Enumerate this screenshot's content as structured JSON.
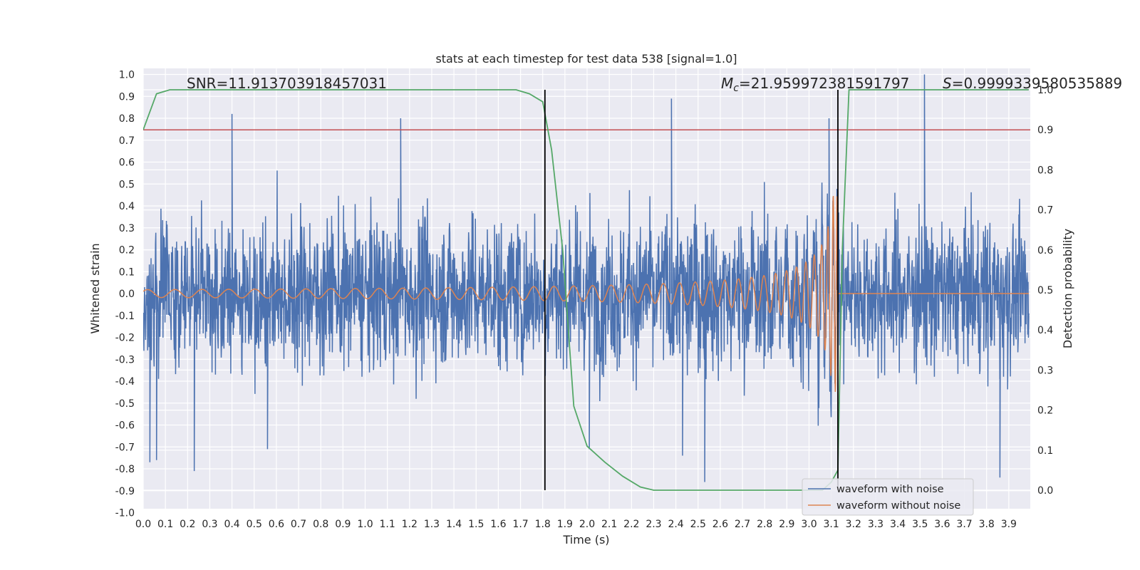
{
  "chart_data": {
    "type": "line",
    "title": "stats at each timestep for test data 538 [signal=1.0]",
    "xlabel": "Time (s)",
    "ylabel": "Whitened strain",
    "y2label": "Detection probability",
    "xlim": [
      0.0,
      3.99
    ],
    "ylim": [
      -1.05,
      1.1
    ],
    "y2lim": [
      -0.05,
      1.0
    ],
    "x_ticks": [
      "0.0",
      "0.1",
      "0.2",
      "0.3",
      "0.4",
      "0.5",
      "0.6",
      "0.7",
      "0.8",
      "0.9",
      "1.0",
      "1.1",
      "1.2",
      "1.3",
      "1.4",
      "1.5",
      "1.6",
      "1.7",
      "1.8",
      "1.9",
      "2.0",
      "2.1",
      "2.2",
      "2.3",
      "2.4",
      "2.5",
      "2.6",
      "2.7",
      "2.8",
      "2.9",
      "3.0",
      "3.1",
      "3.2",
      "3.3",
      "3.4",
      "3.5",
      "3.6",
      "3.7",
      "3.8",
      "3.9"
    ],
    "y_ticks": [
      "1.0",
      "0.9",
      "0.8",
      "0.7",
      "0.6",
      "0.5",
      "0.4",
      "0.3",
      "0.2",
      "0.1",
      "0.0",
      "-0.1",
      "-0.2",
      "-0.3",
      "-0.4",
      "-0.5",
      "-0.6",
      "-0.7",
      "-0.8",
      "-0.9",
      "-1.0"
    ],
    "y2_ticks": [
      "1.0",
      "0.9",
      "0.8",
      "0.7",
      "0.6",
      "0.5",
      "0.4",
      "0.3",
      "0.2",
      "0.1",
      "0.0"
    ],
    "grid": true,
    "legend_position": "bottom-right",
    "annotations": {
      "snr": "SNR=11.913703918457031",
      "mc_symbol": "M",
      "mc_sub": "c",
      "mc_value": "=21.959972381591797",
      "s_symbol": "S",
      "s_value": "=0.9999339580535889"
    },
    "vlines": [
      1.81,
      3.13
    ],
    "threshold": 0.9,
    "series": [
      {
        "name": "waveform with noise",
        "color": "#4c72b0",
        "axis": "left",
        "peaks": [
          [
            0.4,
            0.82
          ],
          [
            0.23,
            -0.81
          ],
          [
            0.03,
            -0.77
          ],
          [
            0.06,
            -0.76
          ],
          [
            0.56,
            -0.71
          ],
          [
            2.38,
            0.89
          ],
          [
            2.53,
            -0.86
          ],
          [
            3.09,
            0.8
          ],
          [
            3.52,
            1.0
          ],
          [
            3.86,
            -0.84
          ],
          [
            1.16,
            0.8
          ],
          [
            2.01,
            -0.71
          ],
          [
            2.43,
            -0.74
          ]
        ]
      },
      {
        "name": "waveform without noise",
        "color": "#dd8452",
        "axis": "left",
        "chirp": {
          "t_merge": 3.13,
          "amp_start": 0.018,
          "amp_peak": 0.45,
          "f_start": 8,
          "f_end": 160
        }
      },
      {
        "name": "",
        "color": "#55a868",
        "axis": "right",
        "x": [
          0.0,
          0.06,
          0.12,
          0.2,
          0.4,
          0.8,
          1.2,
          1.6,
          1.68,
          1.74,
          1.8,
          1.84,
          1.89,
          1.94,
          2.0,
          2.08,
          2.16,
          2.24,
          2.3,
          2.4,
          2.6,
          2.8,
          2.9,
          3.0,
          3.06,
          3.1,
          3.13,
          3.15,
          3.18,
          3.22,
          3.4,
          3.6,
          3.8,
          3.99
        ],
        "values": [
          0.9,
          0.99,
          1.0,
          1.0,
          1.0,
          1.0,
          1.0,
          1.0,
          1.0,
          0.99,
          0.97,
          0.85,
          0.6,
          0.21,
          0.11,
          0.07,
          0.035,
          0.008,
          0.0,
          0.0,
          0.0,
          0.0,
          0.0,
          0.0,
          0.0,
          0.02,
          0.05,
          0.6,
          1.0,
          1.0,
          1.0,
          1.0,
          1.0,
          1.0
        ]
      }
    ],
    "threshold_color": "#c44e52"
  }
}
